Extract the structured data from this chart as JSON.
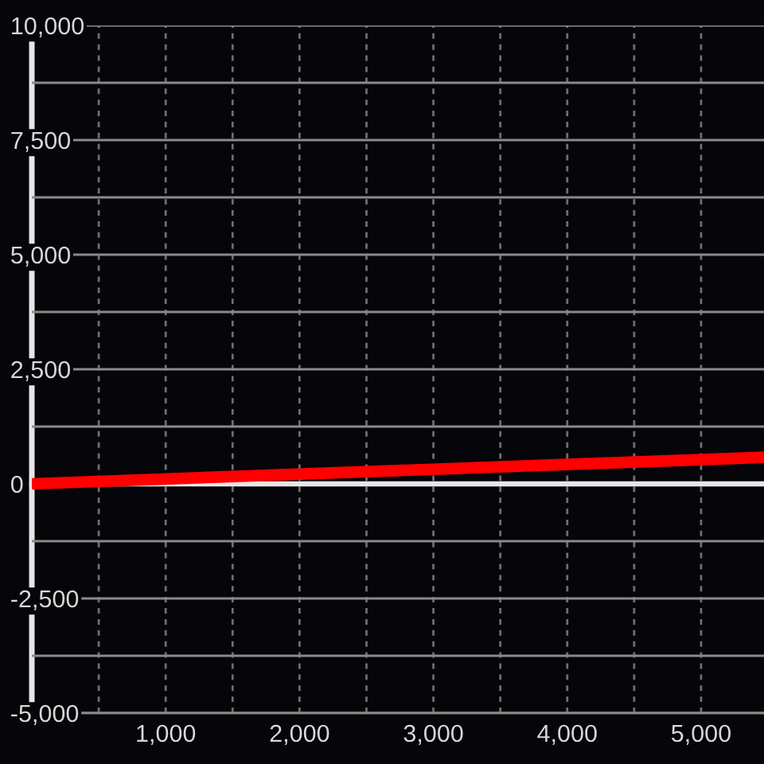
{
  "chart_data": {
    "type": "line",
    "x": [
      0,
      5470
    ],
    "series": [
      {
        "color": "#ff0000",
        "values": [
          0,
          580
        ]
      }
    ],
    "xlim": [
      0,
      5470
    ],
    "ylim": [
      -5000,
      10000
    ],
    "xticks": [
      {
        "value": 500,
        "label": null
      },
      {
        "value": 1000,
        "label": "1,000"
      },
      {
        "value": 1500,
        "label": null
      },
      {
        "value": 2000,
        "label": "2,000"
      },
      {
        "value": 2500,
        "label": null
      },
      {
        "value": 3000,
        "label": "3,000"
      },
      {
        "value": 3500,
        "label": null
      },
      {
        "value": 4000,
        "label": "4,000"
      },
      {
        "value": 4500,
        "label": null
      },
      {
        "value": 5000,
        "label": "5,000"
      }
    ],
    "yticks": [
      {
        "value": -5000,
        "label": "-5,000"
      },
      {
        "value": -3750,
        "label": null
      },
      {
        "value": -2500,
        "label": "-2,500"
      },
      {
        "value": -1250,
        "label": null
      },
      0,
      {
        "value": 1250,
        "label": null
      },
      {
        "value": 2500,
        "label": "2,500"
      },
      {
        "value": 3750,
        "label": null
      },
      {
        "value": 5000,
        "label": "5,000"
      },
      {
        "value": 6250,
        "label": null
      },
      {
        "value": 7500,
        "label": "7,500"
      },
      {
        "value": 8750,
        "label": null
      },
      {
        "value": 10000,
        "label": "10,000"
      }
    ],
    "grid": true,
    "line_style": "solid"
  }
}
